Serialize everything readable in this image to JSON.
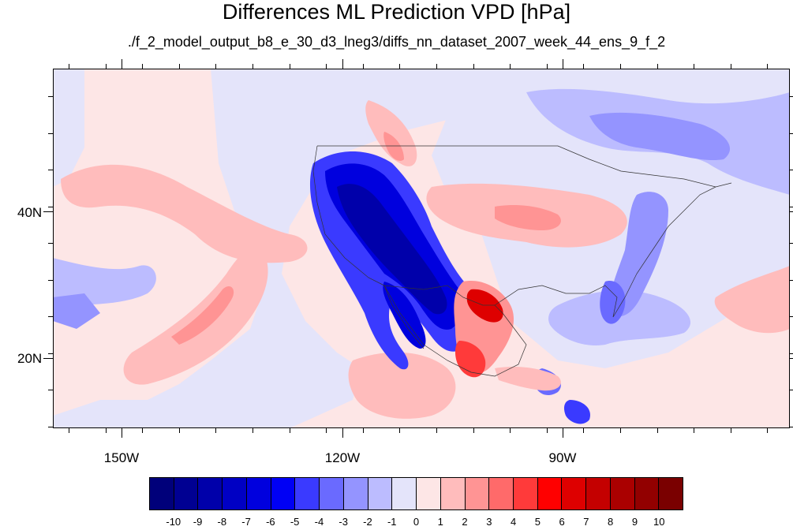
{
  "title": "Differences ML Prediction VPD [hPa]",
  "subtitle": "./f_2_model_output_b8_e_30_d3_lneg3/diffs_nn_dataset_2007_week_44_ens_9_f_2",
  "axes": {
    "lat_labels": [
      "40N",
      "20N"
    ],
    "lon_labels": [
      "150W",
      "120W",
      "90W"
    ]
  },
  "colorbar": {
    "labels": [
      "-10",
      "-9",
      "-8",
      "-7",
      "-6",
      "-5",
      "-4",
      "-3",
      "-2",
      "-1",
      "0",
      "1",
      "2",
      "3",
      "4",
      "5",
      "6",
      "7",
      "8",
      "9",
      "10"
    ],
    "colors": [
      "#00007a",
      "#000092",
      "#0000aa",
      "#0000c4",
      "#0000de",
      "#0000f5",
      "#3a3aff",
      "#6a6aff",
      "#9494ff",
      "#bcbcff",
      "#e4e4fa",
      "#fde6e6",
      "#ffbcbc",
      "#ff9494",
      "#ff6a6a",
      "#ff3a3a",
      "#ff0000",
      "#de0000",
      "#c40000",
      "#aa0000",
      "#920000",
      "#7a0000"
    ]
  },
  "map_colors": {
    "ocean_base": "#fde6e6",
    "light_blue": "#e4e4fa",
    "blue_1": "#bcbcff",
    "blue_2": "#9494ff",
    "blue_3": "#6a6aff",
    "blue_4": "#3a3aff",
    "blue_5": "#0000de",
    "blue_6": "#0000aa",
    "red_1": "#ffbcbc",
    "red_2": "#ff9494",
    "red_3": "#ff3a3a",
    "red_4": "#de0000"
  }
}
